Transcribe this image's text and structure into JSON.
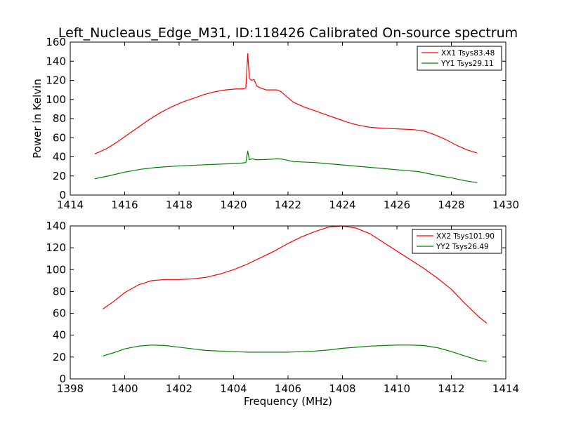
{
  "chart_data": [
    {
      "type": "line",
      "title": "Left_Nucleaus_Edge_M31, ID:118426 Calibrated On-source spectrum",
      "xlabel": "",
      "ylabel": "Power in Kelvin",
      "xlim": [
        1414,
        1430
      ],
      "ylim": [
        0,
        160
      ],
      "xticks": [
        "1414",
        "1416",
        "1418",
        "1420",
        "1422",
        "1424",
        "1426",
        "1428",
        "1430"
      ],
      "yticks": [
        "0",
        "20",
        "40",
        "60",
        "80",
        "100",
        "120",
        "140",
        "160"
      ],
      "legend_position": "top-right",
      "series": [
        {
          "name": "XX1 Tsys83.48",
          "color": "#ff0000",
          "x": [
            1414.9,
            1415.3,
            1415.7,
            1416.1,
            1416.5,
            1416.9,
            1417.3,
            1417.7,
            1418.1,
            1418.5,
            1418.9,
            1419.3,
            1419.7,
            1420.1,
            1420.35,
            1420.45,
            1420.52,
            1420.58,
            1420.66,
            1420.75,
            1420.85,
            1421.0,
            1421.2,
            1421.4,
            1421.6,
            1421.75,
            1421.95,
            1422.2,
            1422.6,
            1423.0,
            1423.4,
            1423.8,
            1424.2,
            1424.6,
            1425.0,
            1425.4,
            1425.8,
            1426.2,
            1426.6,
            1427.0,
            1427.4,
            1427.8,
            1428.2,
            1428.6,
            1428.95
          ],
          "y": [
            43,
            48,
            55,
            63,
            71,
            79,
            86,
            92,
            97,
            101,
            105,
            108,
            110,
            111,
            111,
            112,
            148,
            122,
            120,
            121,
            114,
            112,
            110,
            110,
            110,
            108,
            103,
            97,
            92,
            88,
            84,
            80,
            76,
            73,
            71,
            70,
            69.5,
            69,
            68.5,
            67,
            63,
            58,
            52,
            47,
            44
          ]
        },
        {
          "name": "YY1 Tsys29.11",
          "color": "#008000",
          "x": [
            1414.9,
            1415.4,
            1416.0,
            1416.6,
            1417.2,
            1418.0,
            1418.8,
            1419.6,
            1420.3,
            1420.45,
            1420.52,
            1420.58,
            1420.7,
            1420.8,
            1421.0,
            1421.4,
            1421.6,
            1421.8,
            1422.2,
            1423.0,
            1423.8,
            1424.6,
            1425.4,
            1426.2,
            1426.8,
            1427.4,
            1428.0,
            1428.5,
            1428.95
          ],
          "y": [
            17,
            20,
            24,
            27,
            29,
            30.5,
            31.5,
            32.5,
            33.5,
            34,
            46,
            37,
            38,
            37,
            37,
            37.5,
            38,
            37.5,
            35,
            34,
            32,
            30,
            28,
            26,
            24.5,
            21,
            18,
            15,
            13
          ]
        }
      ]
    },
    {
      "type": "line",
      "title": "",
      "xlabel": "Frequency (MHz)",
      "ylabel": "",
      "xlim": [
        1398,
        1414
      ],
      "ylim": [
        0,
        140
      ],
      "xticks": [
        "1398",
        "1400",
        "1402",
        "1404",
        "1406",
        "1408",
        "1410",
        "1412",
        "1414"
      ],
      "yticks": [
        "0",
        "20",
        "40",
        "60",
        "80",
        "100",
        "120",
        "140"
      ],
      "legend_position": "top-right",
      "series": [
        {
          "name": "XX2 Tsys101.90",
          "color": "#ff0000",
          "x": [
            1399.2,
            1399.6,
            1400.0,
            1400.5,
            1401.0,
            1401.5,
            1402.0,
            1402.5,
            1403.0,
            1403.5,
            1404.0,
            1404.5,
            1405.0,
            1405.5,
            1406.0,
            1406.5,
            1407.0,
            1407.5,
            1408.0,
            1408.5,
            1409.0,
            1409.5,
            1410.0,
            1410.5,
            1411.0,
            1411.5,
            1412.0,
            1412.5,
            1413.0,
            1413.3
          ],
          "y": [
            64,
            71,
            79,
            86,
            90,
            91,
            91,
            91.5,
            93,
            96,
            100,
            105,
            111,
            117,
            124,
            130,
            135,
            139,
            140,
            138,
            133,
            125,
            117,
            109,
            101,
            92,
            82,
            69,
            57,
            51
          ]
        },
        {
          "name": "YY2 Tsys26.49",
          "color": "#008000",
          "x": [
            1399.2,
            1399.6,
            1400.0,
            1400.5,
            1401.0,
            1401.5,
            1402.0,
            1402.5,
            1403.0,
            1403.5,
            1404.0,
            1404.5,
            1405.0,
            1405.5,
            1406.0,
            1406.5,
            1407.0,
            1407.5,
            1408.0,
            1408.5,
            1409.0,
            1409.5,
            1410.0,
            1410.5,
            1411.0,
            1411.5,
            1412.0,
            1412.5,
            1413.0,
            1413.3
          ],
          "y": [
            21,
            24,
            27.5,
            30,
            31,
            30.5,
            29,
            27.5,
            26,
            25.5,
            25,
            24.5,
            24.5,
            24.5,
            24.5,
            25,
            25.5,
            26.5,
            28,
            29,
            30,
            30.5,
            31,
            31,
            30.5,
            28.5,
            25,
            21,
            17,
            16
          ]
        }
      ]
    }
  ]
}
